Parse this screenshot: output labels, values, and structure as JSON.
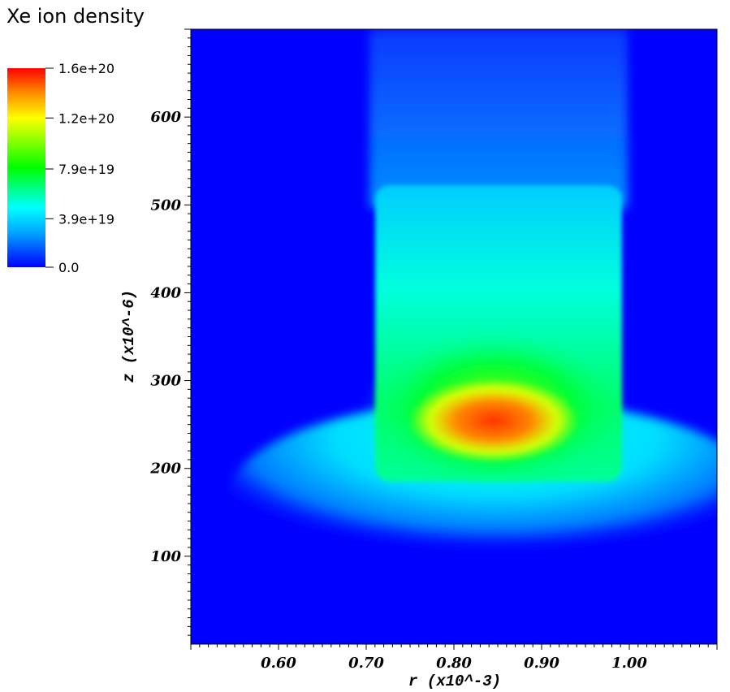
{
  "title": "Xe ion density",
  "colorbar": {
    "min": 0.0,
    "max": 1.6e+20,
    "ticks": [
      "1.6e+20",
      "1.2e+20",
      "7.9e+19",
      "3.9e+19",
      "0.0"
    ],
    "tick_values": [
      1.6e+20,
      1.2e+20,
      7.9e+19,
      3.9e+19,
      0.0
    ],
    "colors": [
      "#0000ff",
      "#00aaff",
      "#00ffff",
      "#00ff00",
      "#ffff00",
      "#ff8800",
      "#ff0000"
    ]
  },
  "chart_data": {
    "type": "heatmap",
    "title": "Xe ion density",
    "xlabel": "r (x10^-3)",
    "ylabel": "z (x10^-6)",
    "xlim": [
      0.5,
      1.1
    ],
    "ylim": [
      0,
      700
    ],
    "x_ticks": [
      "0.60",
      "0.70",
      "0.80",
      "0.90",
      "1.00"
    ],
    "x_tick_values": [
      0.6,
      0.7,
      0.8,
      0.9,
      1.0
    ],
    "y_ticks": [
      "600",
      "500",
      "400",
      "300",
      "200",
      "100"
    ],
    "y_tick_values": [
      600,
      500,
      400,
      300,
      200,
      100
    ],
    "regions": [
      {
        "name": "background",
        "r": [
          0.5,
          1.1
        ],
        "z": [
          0,
          700
        ],
        "value": 0.0
      },
      {
        "name": "channel",
        "r": [
          0.71,
          0.98
        ],
        "z": [
          190,
          700
        ],
        "value": 1.5e+19
      },
      {
        "name": "channel-plasma",
        "r": [
          0.71,
          0.99
        ],
        "z": [
          190,
          525
        ],
        "value": 5.5e+19
      },
      {
        "name": "plume",
        "r": [
          0.55,
          1.1
        ],
        "z": [
          70,
          200
        ],
        "value": 3.5e+19
      },
      {
        "name": "dense-zone",
        "r": [
          0.73,
          0.97
        ],
        "z": [
          200,
          340
        ],
        "value": 9e+19
      },
      {
        "name": "peak",
        "r": [
          0.78,
          0.9
        ],
        "z": [
          220,
          290
        ],
        "value": 1.5e+20
      }
    ]
  }
}
